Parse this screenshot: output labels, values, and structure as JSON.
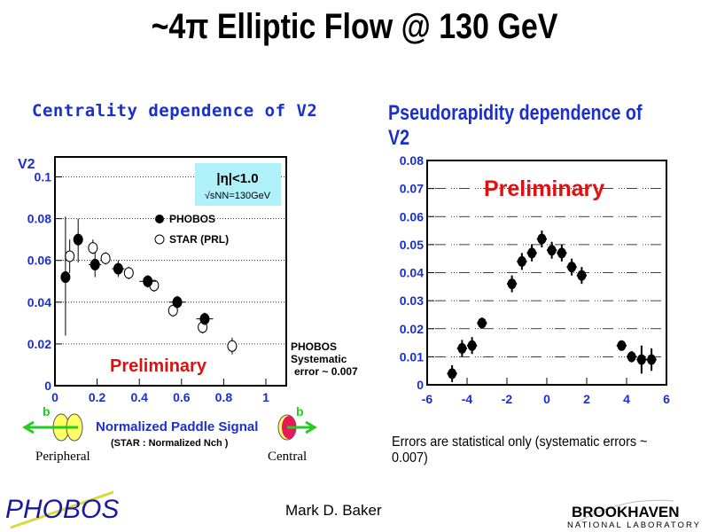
{
  "title": "~4π Elliptic Flow @ 130 GeV",
  "author": "Mark D. Baker",
  "logos": {
    "left": "PHOBOS",
    "right_main": "BROOKHAVEN",
    "right_sub": "NATIONAL LABORATORY"
  },
  "left_panel": {
    "subtitle": "Centrality dependence of V2",
    "systematic": [
      "PHOBOS",
      "Systematic",
      "error ~ 0.007"
    ],
    "annot_peripheral": "Peripheral",
    "annot_central": "Central",
    "b_label": "b"
  },
  "right_panel": {
    "subtitle": "Pseudorapidity dependence of V2",
    "note": "Errors are statistical only  (systematic errors ~ 0.007)"
  },
  "colors": {
    "axis_text": "#1a2fd0",
    "preliminary": "#e01010",
    "box": "#b0f0f8",
    "title_blue": "#1a2fd0",
    "arrow": "#22cc22"
  },
  "chart_data": [
    {
      "type": "scatter",
      "ylabel": "V2",
      "xlabel": "Normalized Paddle Signal",
      "xlabel2": "(STAR : Normalized Nch )",
      "xlim": [
        0,
        1.1
      ],
      "ylim": [
        0,
        0.11
      ],
      "xticks": [
        "0",
        "0.2",
        "0.4",
        "0.6",
        "0.8",
        "1"
      ],
      "yticks": [
        "0",
        "0.02",
        "0.04",
        "0.06",
        "0.08",
        "0.1"
      ],
      "annotation": "Preliminary",
      "box_line1": "|η|<1.0",
      "box_line2": "√sNN=130GeV",
      "series": [
        {
          "name": "PHOBOS",
          "marker": "filled",
          "points": [
            {
              "x": 0.05,
              "y": 0.052,
              "ylo": 0.024,
              "yhi": 0.081,
              "xe": 0.0
            },
            {
              "x": 0.11,
              "y": 0.07,
              "ylo": 0.059,
              "yhi": 0.08,
              "xe": 0.0
            },
            {
              "x": 0.19,
              "y": 0.058,
              "ylo": 0.052,
              "yhi": 0.064,
              "xe": 0.03
            },
            {
              "x": 0.3,
              "y": 0.056,
              "ylo": 0.052,
              "yhi": 0.06,
              "xe": 0.03
            },
            {
              "x": 0.44,
              "y": 0.05,
              "ylo": 0.047,
              "yhi": 0.053,
              "xe": 0.04
            },
            {
              "x": 0.58,
              "y": 0.04,
              "ylo": 0.037,
              "yhi": 0.043,
              "xe": 0.04
            },
            {
              "x": 0.71,
              "y": 0.032,
              "ylo": 0.029,
              "yhi": 0.035,
              "xe": 0.04
            }
          ]
        },
        {
          "name": "STAR (PRL)",
          "marker": "open",
          "points": [
            {
              "x": 0.07,
              "y": 0.062,
              "ylo": 0.054,
              "yhi": 0.07,
              "xe": 0
            },
            {
              "x": 0.18,
              "y": 0.066,
              "ylo": 0.063,
              "yhi": 0.07,
              "xe": 0
            },
            {
              "x": 0.24,
              "y": 0.061,
              "ylo": 0.058,
              "yhi": 0.064,
              "xe": 0
            },
            {
              "x": 0.35,
              "y": 0.054,
              "ylo": 0.051,
              "yhi": 0.057,
              "xe": 0
            },
            {
              "x": 0.47,
              "y": 0.048,
              "ylo": 0.045,
              "yhi": 0.05,
              "xe": 0
            },
            {
              "x": 0.56,
              "y": 0.036,
              "ylo": 0.033,
              "yhi": 0.039,
              "xe": 0
            },
            {
              "x": 0.7,
              "y": 0.028,
              "ylo": 0.025,
              "yhi": 0.031,
              "xe": 0
            },
            {
              "x": 0.84,
              "y": 0.019,
              "ylo": 0.015,
              "yhi": 0.023,
              "xe": 0
            }
          ]
        }
      ]
    },
    {
      "type": "scatter",
      "xlim": [
        -6,
        6
      ],
      "ylim": [
        0,
        0.08
      ],
      "annotation": "Preliminary",
      "xticks": [
        "-6",
        "-4",
        "-2",
        "0",
        "2",
        "4",
        "6"
      ],
      "yticks": [
        "0",
        "0.01",
        "0.02",
        "0.03",
        "0.04",
        "0.05",
        "0.06",
        "0.07",
        "0.08"
      ],
      "series": [
        {
          "name": "PHOBOS",
          "marker": "filled",
          "points": [
            {
              "x": -4.75,
              "y": 0.004,
              "e": 0.003
            },
            {
              "x": -4.25,
              "y": 0.013,
              "e": 0.003
            },
            {
              "x": -3.75,
              "y": 0.014,
              "e": 0.003
            },
            {
              "x": -3.25,
              "y": 0.022,
              "e": 0.002
            },
            {
              "x": -1.75,
              "y": 0.036,
              "e": 0.003
            },
            {
              "x": -1.25,
              "y": 0.044,
              "e": 0.003
            },
            {
              "x": -0.75,
              "y": 0.047,
              "e": 0.003
            },
            {
              "x": -0.25,
              "y": 0.052,
              "e": 0.003
            },
            {
              "x": 0.25,
              "y": 0.048,
              "e": 0.003
            },
            {
              "x": 0.75,
              "y": 0.047,
              "e": 0.003
            },
            {
              "x": 1.25,
              "y": 0.042,
              "e": 0.003
            },
            {
              "x": 1.75,
              "y": 0.039,
              "e": 0.003
            },
            {
              "x": 3.75,
              "y": 0.014,
              "e": 0.001
            },
            {
              "x": 4.25,
              "y": 0.01,
              "e": 0.002
            },
            {
              "x": 4.75,
              "y": 0.009,
              "e": 0.005
            },
            {
              "x": 5.25,
              "y": 0.009,
              "e": 0.004
            }
          ]
        }
      ]
    }
  ]
}
